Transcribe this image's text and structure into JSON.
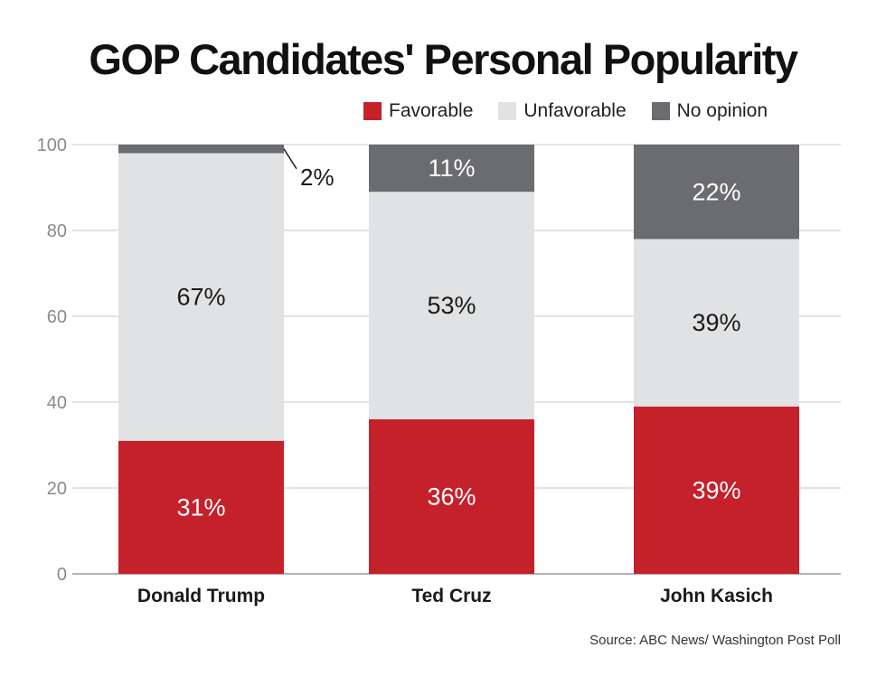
{
  "chart_data": {
    "type": "bar",
    "stacked": true,
    "title": "GOP Candidates' Personal Popularity",
    "categories": [
      "Donald Trump",
      "Ted Cruz",
      "John Kasich"
    ],
    "series": [
      {
        "name": "Favorable",
        "color": "#c4212a",
        "values": [
          31,
          36,
          39
        ],
        "labels": [
          "31%",
          "36%",
          "39%"
        ]
      },
      {
        "name": "Unfavorable",
        "color": "#e1e2e4",
        "values": [
          67,
          53,
          39
        ],
        "labels": [
          "67%",
          "53%",
          "39%"
        ]
      },
      {
        "name": "No opinion",
        "color": "#6b6c70",
        "values": [
          2,
          11,
          22
        ],
        "labels": [
          "2%",
          "11%",
          "22%"
        ]
      }
    ],
    "ylim": [
      0,
      100
    ],
    "yticks": [
      0,
      20,
      40,
      60,
      80,
      100
    ],
    "ytick_labels": [
      "0",
      "20",
      "40",
      "60",
      "80",
      "100"
    ],
    "grid": true,
    "legend": "top-right",
    "xlabel": "",
    "ylabel": "",
    "source": "Source: ABC News/ Washington Post Poll"
  }
}
